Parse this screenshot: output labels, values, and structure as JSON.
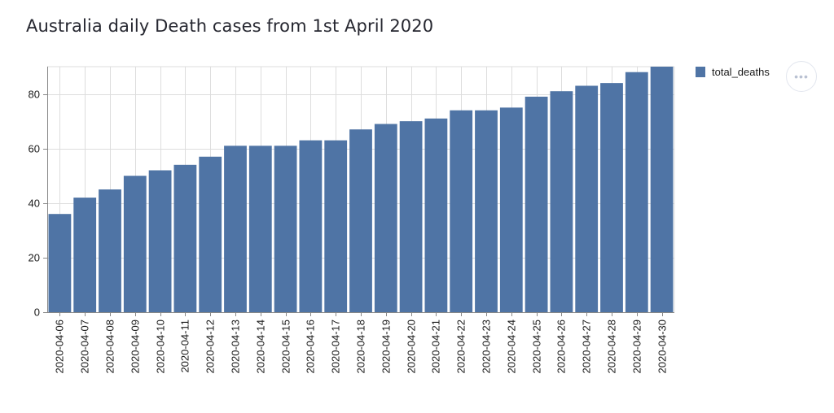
{
  "title": "Australia daily Death cases from 1st April 2020",
  "colors": {
    "bar": "#4f74a5",
    "grid": "#dddddd",
    "axis": "#888888",
    "text": "#1a1a1a"
  },
  "menu": {
    "icon": "ellipsis-icon",
    "label": "•••"
  },
  "chart_data": {
    "type": "bar",
    "title": "Australia daily Death cases from 1st April 2020",
    "xlabel": "",
    "ylabel": "",
    "ylim": [
      0,
      90
    ],
    "yticks": [
      0,
      20,
      40,
      60,
      80
    ],
    "grid": true,
    "legend_position": "top-right",
    "categories": [
      "2020-04-06",
      "2020-04-07",
      "2020-04-08",
      "2020-04-09",
      "2020-04-10",
      "2020-04-11",
      "2020-04-12",
      "2020-04-13",
      "2020-04-14",
      "2020-04-15",
      "2020-04-16",
      "2020-04-17",
      "2020-04-18",
      "2020-04-19",
      "2020-04-20",
      "2020-04-21",
      "2020-04-22",
      "2020-04-23",
      "2020-04-24",
      "2020-04-25",
      "2020-04-26",
      "2020-04-27",
      "2020-04-28",
      "2020-04-29",
      "2020-04-30"
    ],
    "series": [
      {
        "name": "total_deaths",
        "values": [
          36,
          42,
          45,
          50,
          52,
          54,
          57,
          61,
          61,
          61,
          63,
          63,
          67,
          69,
          70,
          71,
          74,
          74,
          75,
          79,
          81,
          83,
          84,
          88,
          90
        ]
      }
    ]
  }
}
